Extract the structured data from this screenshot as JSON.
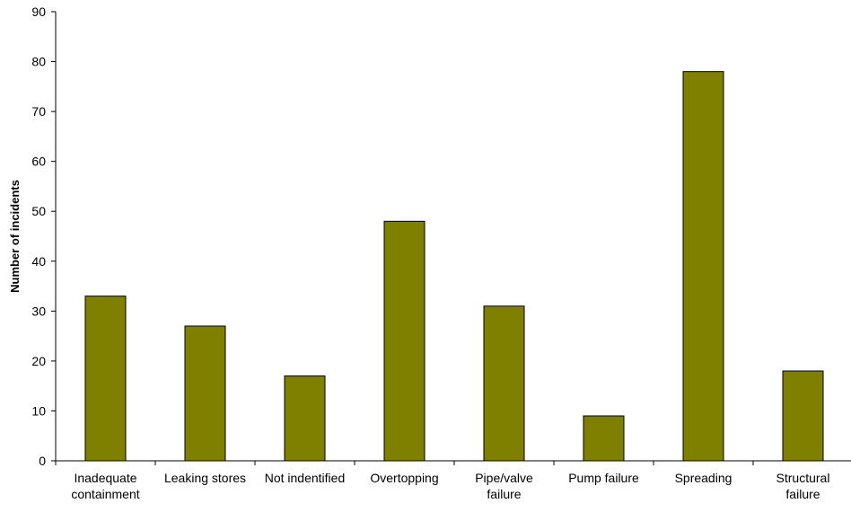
{
  "chart_data": {
    "type": "bar",
    "title": "",
    "xlabel": "",
    "ylabel": "Number of incidents",
    "categories": [
      [
        "Inadequate",
        "containment"
      ],
      [
        "Leaking stores"
      ],
      [
        "Not indentified"
      ],
      [
        "Overtopping"
      ],
      [
        "Pipe/valve",
        "failure"
      ],
      [
        "Pump failure"
      ],
      [
        "Spreading"
      ],
      [
        "Structural",
        "failure"
      ]
    ],
    "values": [
      33,
      27,
      17,
      48,
      31,
      9,
      78,
      18
    ],
    "ylim": [
      0,
      90
    ],
    "yticks": [
      0,
      10,
      20,
      30,
      40,
      50,
      60,
      70,
      80,
      90
    ],
    "grid": false,
    "legend": "none",
    "colors": {
      "bar_fill": "#808000",
      "bar_stroke": "#000000",
      "axis": "#000000"
    }
  }
}
